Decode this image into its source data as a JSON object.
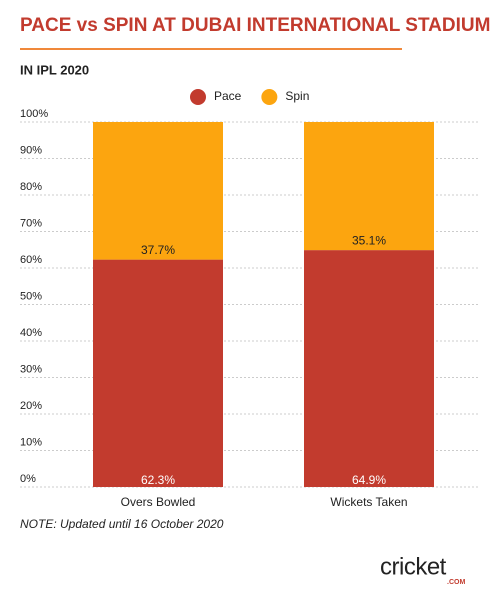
{
  "chart_data": {
    "type": "stacked_bar",
    "title": "PACE vs SPIN AT DUBAI INTERNATIONAL STADIUM",
    "subtitle": "IN IPL 2020",
    "note": "NOTE: Updated until 16 October 2020",
    "categories": [
      "Overs Bowled",
      "Wickets Taken"
    ],
    "series": [
      {
        "name": "Pace",
        "color": "#c23b2e",
        "values": [
          62.3,
          64.9
        ],
        "value_labels": [
          "62.3%",
          "64.9%"
        ]
      },
      {
        "name": "Spin",
        "color": "#fca50f",
        "values": [
          37.7,
          35.1
        ],
        "value_labels": [
          "37.7%",
          "35.1%"
        ]
      }
    ],
    "ylim": [
      0,
      100
    ],
    "yticks": [
      {
        "value": 0,
        "label": "0%"
      },
      {
        "value": 10,
        "label": "10%"
      },
      {
        "value": 20,
        "label": "20%"
      },
      {
        "value": 30,
        "label": "30%"
      },
      {
        "value": 40,
        "label": "40%"
      },
      {
        "value": 50,
        "label": "50%"
      },
      {
        "value": 60,
        "label": "60%"
      },
      {
        "value": 70,
        "label": "70%"
      },
      {
        "value": 80,
        "label": "80%"
      },
      {
        "value": 90,
        "label": "90%"
      },
      {
        "value": 100,
        "label": "100%"
      }
    ],
    "grid": true
  },
  "logo": {
    "name": "cricket",
    "suffix": ".COM"
  }
}
